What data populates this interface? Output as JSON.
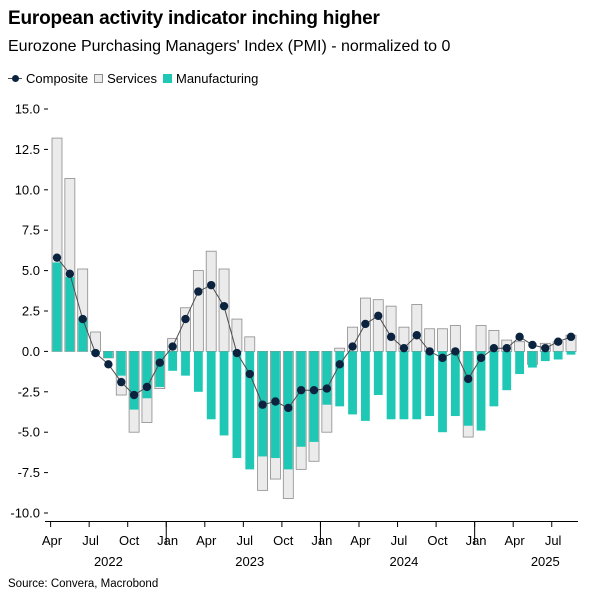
{
  "title": "European activity indicator inching higher",
  "subtitle": "Eurozone Purchasing Managers' Index (PMI) - normalized to 0",
  "source": "Source: Convera, Macrobond",
  "colors": {
    "composite": "#0c2340",
    "services_fill": "#ebebeb",
    "services_stroke": "#8c8c8c",
    "manufacturing": "#1ec8b4",
    "composite_line": "#4d4d4d"
  },
  "chart_data": {
    "type": "bar",
    "legend_position": "top-left",
    "grid": false,
    "ylim": [
      -10,
      15
    ],
    "y_ticks": [
      -10,
      -7.5,
      -5,
      -2.5,
      0,
      2.5,
      5,
      7.5,
      10,
      12.5,
      15
    ],
    "y_tick_labels": [
      "-10.0",
      "-7.5",
      "-5.0",
      "-2.5",
      "0.0",
      "2.5",
      "5.0",
      "7.5",
      "10.0",
      "12.5",
      "15.0"
    ],
    "x_month_ticks": [
      {
        "index": 0,
        "label": "Apr"
      },
      {
        "index": 3,
        "label": "Jul"
      },
      {
        "index": 6,
        "label": "Oct"
      },
      {
        "index": 9,
        "label": "Jan"
      },
      {
        "index": 12,
        "label": "Apr"
      },
      {
        "index": 15,
        "label": "Jul"
      },
      {
        "index": 18,
        "label": "Oct"
      },
      {
        "index": 21,
        "label": "Jan"
      },
      {
        "index": 24,
        "label": "Apr"
      },
      {
        "index": 27,
        "label": "Jul"
      },
      {
        "index": 30,
        "label": "Oct"
      },
      {
        "index": 33,
        "label": "Jan"
      },
      {
        "index": 36,
        "label": "Apr"
      },
      {
        "index": 39,
        "label": "Jul"
      }
    ],
    "x_year_labels": [
      {
        "center_index": 4,
        "label": "2022"
      },
      {
        "center_index": 15,
        "label": "2023"
      },
      {
        "center_index": 27,
        "label": "2024"
      },
      {
        "center_index": 38,
        "label": "2025"
      }
    ],
    "months": [
      "2022-04",
      "2022-05",
      "2022-06",
      "2022-07",
      "2022-08",
      "2022-09",
      "2022-10",
      "2022-11",
      "2022-12",
      "2023-01",
      "2023-02",
      "2023-03",
      "2023-04",
      "2023-05",
      "2023-06",
      "2023-07",
      "2023-08",
      "2023-09",
      "2023-10",
      "2023-11",
      "2023-12",
      "2024-01",
      "2024-02",
      "2024-03",
      "2024-04",
      "2024-05",
      "2024-06",
      "2024-07",
      "2024-08",
      "2024-09",
      "2024-10",
      "2024-11",
      "2024-12",
      "2025-01",
      "2025-02",
      "2025-03",
      "2025-04",
      "2025-05",
      "2025-06",
      "2025-07",
      "2025-08"
    ],
    "series": [
      {
        "name": "Composite",
        "type": "line",
        "values": [
          5.8,
          4.8,
          2.0,
          -0.1,
          -0.8,
          -1.9,
          -2.7,
          -2.2,
          -0.7,
          0.3,
          2.0,
          3.7,
          4.1,
          2.8,
          -0.1,
          -1.4,
          -3.3,
          -3.1,
          -3.5,
          -2.4,
          -2.4,
          -2.3,
          -0.8,
          0.3,
          1.7,
          2.2,
          0.9,
          0.2,
          1.0,
          0.0,
          -0.4,
          0.0,
          -1.7,
          -0.4,
          0.2,
          0.2,
          0.9,
          0.4,
          0.2,
          0.6,
          0.9
        ]
      },
      {
        "name": "Services",
        "type": "bar",
        "values": [
          13.2,
          10.7,
          5.1,
          1.2,
          -0.4,
          -2.7,
          -5.0,
          -4.4,
          -2.3,
          0.8,
          2.7,
          5.0,
          6.2,
          5.1,
          2.0,
          0.9,
          -8.6,
          -7.9,
          -9.1,
          -7.3,
          -6.8,
          -5.0,
          0.2,
          1.5,
          3.3,
          3.2,
          2.8,
          1.5,
          2.9,
          1.4,
          1.4,
          1.6,
          -5.3,
          1.6,
          1.3,
          0.7,
          0.6,
          -0.8,
          0.5,
          0.6,
          1.0
        ]
      },
      {
        "name": "Manufacturing",
        "type": "bar",
        "values": [
          5.5,
          4.6,
          2.1,
          -0.2,
          -0.4,
          -1.5,
          -3.6,
          -2.9,
          -2.2,
          -1.2,
          -1.5,
          -2.5,
          -4.2,
          -5.2,
          -6.6,
          -7.3,
          -6.5,
          -6.6,
          -7.3,
          -5.9,
          -5.6,
          -3.3,
          -3.4,
          -3.9,
          -4.3,
          -2.7,
          -4.2,
          -4.2,
          -4.2,
          -4.0,
          -5.0,
          -4.0,
          -4.6,
          -4.9,
          -3.4,
          -2.4,
          -1.4,
          -1.0,
          -0.6,
          -0.5,
          -0.2
        ]
      }
    ]
  }
}
